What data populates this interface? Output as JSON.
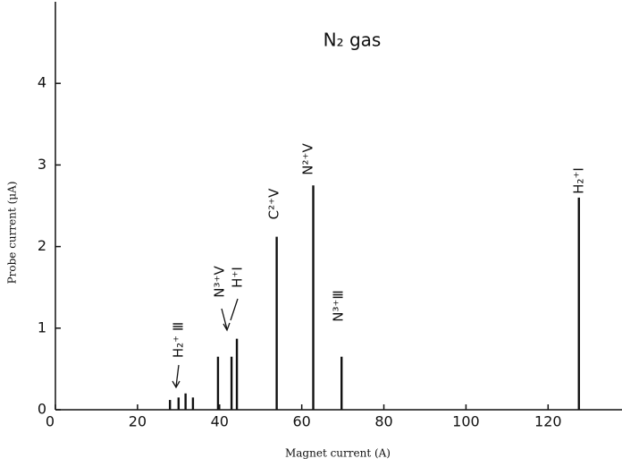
{
  "chart_data": {
    "type": "stem",
    "title": "N₂ gas",
    "x_label": "Magnet current (A)",
    "y_label": "Probe current (μA)",
    "series": [
      {
        "color": "#111111",
        "x": [
          27.9,
          30.0,
          31.7,
          33.5,
          39.6,
          42.9,
          44.2,
          53.9,
          62.8,
          69.7,
          127.5
        ],
        "values": [
          0.12,
          0.15,
          0.2,
          0.15,
          0.65,
          0.65,
          0.87,
          2.12,
          2.75,
          0.65,
          2.6
        ]
      }
    ],
    "annotations": [
      "H₂⁺ Ⅲ",
      "N³⁺Ⅴ",
      "H⁺Ⅰ",
      "C²⁺Ⅴ",
      "N²⁺Ⅴ",
      "N³⁺Ⅲ",
      "H₂⁺Ⅰ"
    ],
    "xlim": [
      0,
      138
    ],
    "ylim": [
      0,
      5
    ],
    "xticks": [
      0,
      20,
      40,
      60,
      80,
      100,
      120
    ],
    "yticks": [
      0,
      1,
      2,
      3,
      4
    ]
  }
}
